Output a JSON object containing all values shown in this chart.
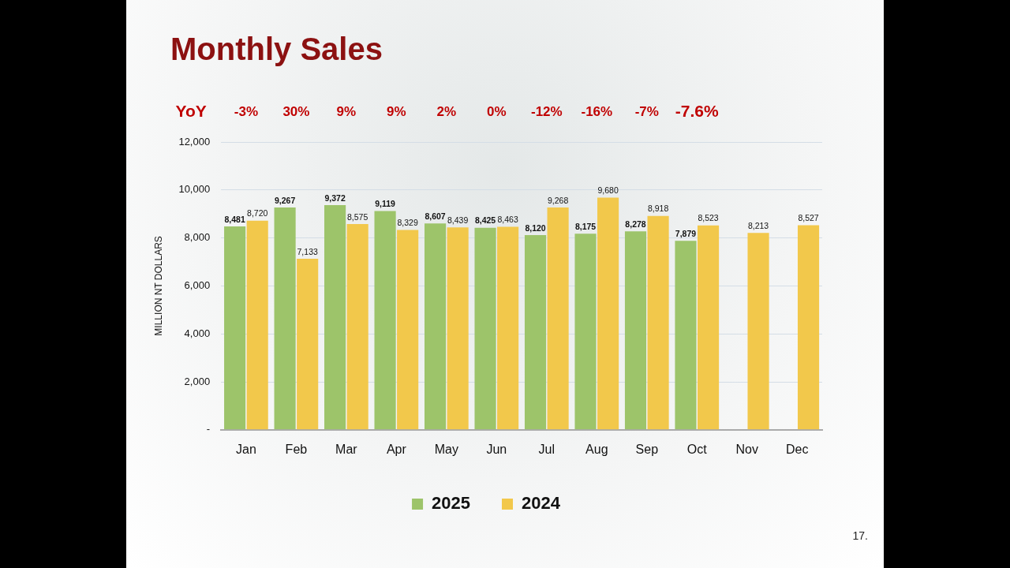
{
  "chart_data": {
    "type": "bar",
    "title": "Monthly Sales",
    "ylabel": "MILLION NT DOLLARS",
    "categories": [
      "Jan",
      "Feb",
      "Mar",
      "Apr",
      "May",
      "Jun",
      "Jul",
      "Aug",
      "Sep",
      "Oct",
      "Nov",
      "Dec"
    ],
    "series": [
      {
        "name": "2025",
        "color": "#9dc46a",
        "values": [
          8481,
          9267,
          9372,
          9119,
          8607,
          8425,
          8120,
          8175,
          8278,
          7879,
          null,
          null
        ],
        "value_labels": [
          "8,481",
          "9,267",
          "9,372",
          "9,119",
          "8,607",
          "8,425",
          "8,120",
          "8,175",
          "8,278",
          "7,879",
          null,
          null
        ]
      },
      {
        "name": "2024",
        "color": "#f2c84b",
        "values": [
          8720,
          7133,
          8575,
          8329,
          8439,
          8463,
          9268,
          9680,
          8918,
          8523,
          8213,
          8527
        ],
        "value_labels": [
          "8,720",
          "7,133",
          "8,575",
          "8,329",
          "8,439",
          "8,463",
          "9,268",
          "9,680",
          "8,918",
          "8,523",
          "8,213",
          "8,527"
        ]
      }
    ],
    "ylim": [
      0,
      12000
    ],
    "yticks": [
      {
        "value": 0,
        "label": "-"
      },
      {
        "value": 2000,
        "label": "2,000"
      },
      {
        "value": 4000,
        "label": "4,000"
      },
      {
        "value": 6000,
        "label": "6,000"
      },
      {
        "value": 8000,
        "label": "8,000"
      },
      {
        "value": 10000,
        "label": "10,000"
      },
      {
        "value": 12000,
        "label": "12,000"
      }
    ],
    "grid": "y",
    "legend": "bottom",
    "annotations": [
      "YoY",
      "-3%",
      "30%",
      "9%",
      "9%",
      "2%",
      "0%",
      "-12%",
      "-16%",
      "-7%",
      "-7.6%",
      "17."
    ]
  }
}
